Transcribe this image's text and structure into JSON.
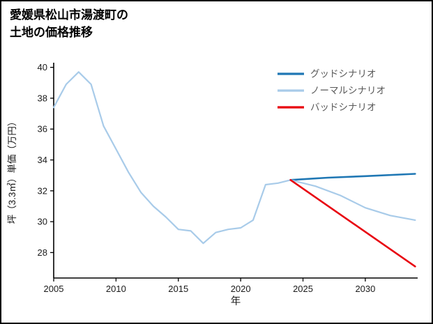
{
  "title": "愛媛県松山市湯渡町の\n土地の価格推移",
  "chart_data": {
    "type": "line",
    "title": "愛媛県松山市湯渡町の土地の価格推移",
    "xlabel": "年",
    "ylabel": "坪（3.3㎡）単価（万円）",
    "xlim": [
      2005,
      2034.2
    ],
    "ylim": [
      26.35,
      40.3
    ],
    "xticks": [
      2005,
      2010,
      2015,
      2020,
      2025,
      2030
    ],
    "yticks": [
      28,
      30,
      32,
      34,
      36,
      38,
      40
    ],
    "grid": false,
    "legend_position": "upper right",
    "colors": {
      "axis": "#000000",
      "tick_label": "#1a1a1a",
      "legend_text": "#595959",
      "good": "#1f77b4",
      "normal": "#a8cbe9",
      "bad": "#e8000d"
    },
    "legend": [
      {
        "label": "グッドシナリオ",
        "color": "#1f77b4"
      },
      {
        "label": "ノーマルシナリオ",
        "color": "#a8cbe9"
      },
      {
        "label": "バッドシナリオ",
        "color": "#e8000d"
      }
    ],
    "series": [
      {
        "name": "history",
        "color": "#a8cbe9",
        "width": 2.2,
        "x": [
          2005,
          2006,
          2007,
          2008,
          2009,
          2010,
          2011,
          2012,
          2013,
          2014,
          2015,
          2016,
          2017,
          2018,
          2019,
          2020,
          2021,
          2022,
          2023,
          2024
        ],
        "y": [
          37.4,
          38.9,
          39.7,
          38.9,
          36.2,
          34.7,
          33.2,
          31.9,
          31.0,
          30.3,
          29.5,
          29.4,
          28.6,
          29.3,
          29.5,
          29.6,
          30.1,
          32.4,
          32.5,
          32.7
        ]
      },
      {
        "name": "グッドシナリオ",
        "color": "#1f77b4",
        "width": 2.6,
        "x": [
          2024,
          2027,
          2030,
          2034
        ],
        "y": [
          32.7,
          32.85,
          32.95,
          33.1
        ]
      },
      {
        "name": "ノーマルシナリオ",
        "color": "#a8cbe9",
        "width": 2.2,
        "x": [
          2024,
          2026,
          2028,
          2030,
          2032,
          2034
        ],
        "y": [
          32.7,
          32.3,
          31.7,
          30.9,
          30.4,
          30.1
        ]
      },
      {
        "name": "バッドシナリオ",
        "color": "#e8000d",
        "width": 2.6,
        "x": [
          2024,
          2034
        ],
        "y": [
          32.7,
          27.1
        ]
      }
    ]
  }
}
